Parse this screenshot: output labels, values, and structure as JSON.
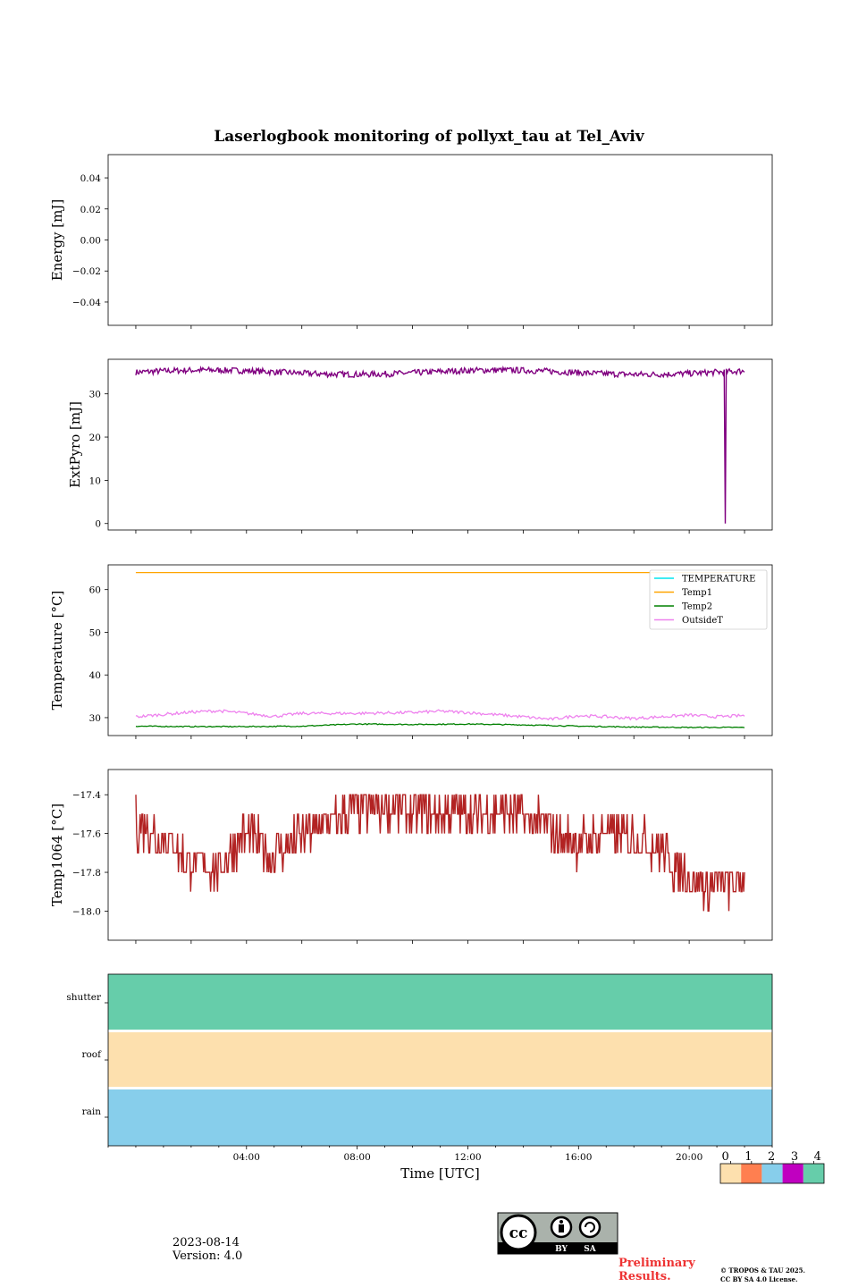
{
  "title": "Laserlogbook monitoring of pollyxt_tau at Tel_Aviv",
  "footer": {
    "date": "2023-08-14",
    "version": "Version: 4.0"
  },
  "preliminary": {
    "line1": "Preliminary",
    "line2": "Results."
  },
  "copyright": {
    "line1": "© TROPOS & TAU 2025.",
    "line2": "CC BY SA 4.0 License."
  },
  "license_badge": {
    "left_text": "BY",
    "right_text": "SA",
    "icon": "cc-by-sa-icon"
  },
  "colorbar": {
    "labels": [
      "0",
      "1",
      "2",
      "3",
      "4"
    ],
    "colors": [
      "#fde0ae",
      "#ff7f50",
      "#87ceeb",
      "#c000c0",
      "#66cdaa"
    ]
  },
  "chart_data": [
    {
      "type": "line",
      "ylabel": "Energy [mJ]",
      "ylim": [
        -0.055,
        0.055
      ],
      "yticks": [
        -0.04,
        -0.02,
        0.0,
        0.02,
        0.04
      ],
      "ytick_labels": [
        "−0.04",
        "−0.02",
        "0.00",
        "0.02",
        "0.04"
      ],
      "series": []
    },
    {
      "type": "line",
      "ylabel": "ExtPyro [mJ]",
      "ylim": [
        -1.5,
        38
      ],
      "yticks": [
        0,
        10,
        20,
        30
      ],
      "ytick_labels": [
        "0",
        "10",
        "20",
        "30"
      ],
      "series": [
        {
          "color": "#800080",
          "mean": 35,
          "noise": 0.7,
          "drops": [
            {
              "x": 21.3,
              "y": 0
            }
          ]
        }
      ]
    },
    {
      "type": "line",
      "ylabel": "Temperature [°C]",
      "ylim": [
        25.8,
        65.8
      ],
      "yticks": [
        30,
        40,
        50,
        60
      ],
      "ytick_labels": [
        "30",
        "40",
        "50",
        "60"
      ],
      "legend": {
        "position": "top-right"
      },
      "series": [
        {
          "name": "TEMPERATURE",
          "color": "#00e5ee",
          "points": []
        },
        {
          "name": "Temp1",
          "color": "#ffa500",
          "points": [
            [
              0.0,
              64.0
            ],
            [
              24.0,
              64.0
            ]
          ]
        },
        {
          "name": "Temp2",
          "color": "#008000",
          "points": [
            [
              0.0,
              28.0
            ],
            [
              2.0,
              27.9
            ],
            [
              4.0,
              27.9
            ],
            [
              6.0,
              28.0
            ],
            [
              8.0,
              28.5
            ],
            [
              10.0,
              28.4
            ],
            [
              12.0,
              28.5
            ],
            [
              14.0,
              28.3
            ],
            [
              16.0,
              28.0
            ],
            [
              18.0,
              27.8
            ],
            [
              20.0,
              27.7
            ],
            [
              22.0,
              27.7
            ],
            [
              24.0,
              27.7
            ]
          ]
        },
        {
          "name": "OutsideT",
          "color": "#ee82ee",
          "points": [
            [
              0.0,
              30.2
            ],
            [
              2.0,
              31.3
            ],
            [
              3.0,
              31.6
            ],
            [
              4.0,
              31.0
            ],
            [
              5.0,
              30.3
            ],
            [
              6.0,
              31.0
            ],
            [
              8.0,
              31.0
            ],
            [
              10.0,
              31.2
            ],
            [
              11.0,
              31.5
            ],
            [
              12.0,
              31.2
            ],
            [
              14.0,
              30.2
            ],
            [
              15.0,
              29.6
            ],
            [
              16.0,
              30.5
            ],
            [
              17.0,
              30.2
            ],
            [
              18.0,
              29.8
            ],
            [
              20.0,
              30.6
            ],
            [
              21.0,
              30.2
            ],
            [
              22.0,
              30.5
            ],
            [
              24.0,
              30.6
            ]
          ]
        }
      ]
    },
    {
      "type": "line",
      "ylabel": "Temp1064 [°C]",
      "ylim": [
        -18.15,
        -17.27
      ],
      "yticks": [
        -18.0,
        -17.8,
        -17.6,
        -17.4
      ],
      "ytick_labels": [
        "−18.0",
        "−17.8",
        "−17.6",
        "−17.4"
      ],
      "series": [
        {
          "color": "#b22222",
          "step": 0.1,
          "points": [
            [
              0.0,
              -17.55
            ],
            [
              1.0,
              -17.62
            ],
            [
              2.0,
              -17.75
            ],
            [
              3.0,
              -17.78
            ],
            [
              3.5,
              -17.68
            ],
            [
              4.0,
              -17.6
            ],
            [
              5.0,
              -17.72
            ],
            [
              6.0,
              -17.62
            ],
            [
              7.0,
              -17.55
            ],
            [
              8.0,
              -17.48
            ],
            [
              9.0,
              -17.45
            ],
            [
              10.0,
              -17.5
            ],
            [
              11.0,
              -17.5
            ],
            [
              12.0,
              -17.5
            ],
            [
              13.0,
              -17.5
            ],
            [
              14.0,
              -17.5
            ],
            [
              15.0,
              -17.58
            ],
            [
              16.0,
              -17.65
            ],
            [
              17.0,
              -17.6
            ],
            [
              18.0,
              -17.62
            ],
            [
              19.0,
              -17.68
            ],
            [
              19.5,
              -17.78
            ],
            [
              20.5,
              -17.88
            ],
            [
              21.5,
              -17.85
            ],
            [
              22.5,
              -17.88
            ],
            [
              24.0,
              -17.88
            ]
          ]
        }
      ]
    },
    {
      "type": "heatmap",
      "rows": [
        "shutter",
        "roof",
        "rain"
      ],
      "row_colors": [
        "#66cdaa",
        "#fde0ae",
        "#87ceeb"
      ],
      "xlabel": "Time [UTC]",
      "xlim": [
        -1.0,
        23.0
      ],
      "xticks": [
        4,
        8,
        12,
        16,
        20
      ],
      "xtick_labels": [
        "04:00",
        "08:00",
        "12:00",
        "16:00",
        "20:00"
      ]
    }
  ]
}
